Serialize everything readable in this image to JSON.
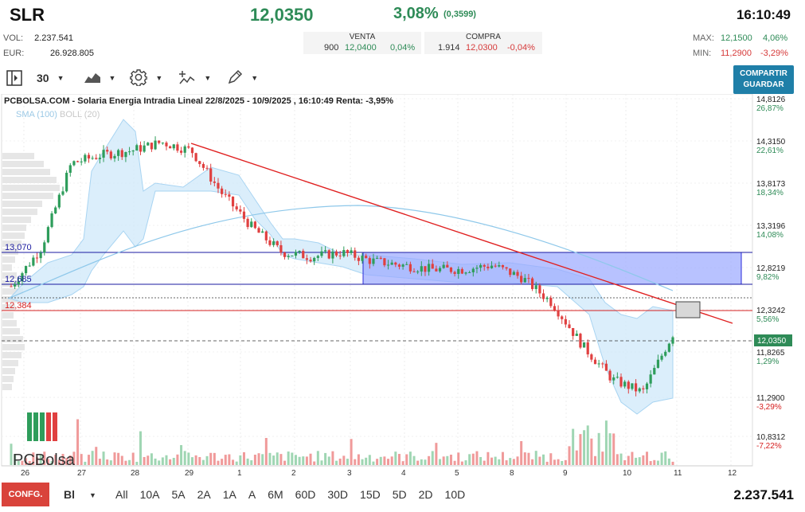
{
  "header": {
    "ticker": "SLR",
    "last_price": "12,0350",
    "change_pct": "3,08%",
    "change_abs": "(0,3599)",
    "time": "16:10:49"
  },
  "stats": {
    "vol_label": "VOL:",
    "vol_value": "2.237.541",
    "eur_label": "EUR:",
    "eur_value": "26.928.805"
  },
  "quote": {
    "venta_label": "VENTA",
    "venta_qty": "900",
    "venta_price": "12,0400",
    "venta_pct": "0,04%",
    "compra_label": "COMPRA",
    "compra_qty": "1.914",
    "compra_price": "12,0300",
    "compra_pct": "-0,04%"
  },
  "maxmin": {
    "max_label": "MAX:",
    "max_value": "12,1500",
    "max_pct": "4,06%",
    "min_label": "MIN:",
    "min_value": "11,2900",
    "min_pct": "-3,29%"
  },
  "toolbar": {
    "interval": "30",
    "share_line1": "COMPARTIR",
    "share_line2": "GUARDAR"
  },
  "chart": {
    "title": "PCBOLSA.COM - Solaria Energia Intradia Lineal 22/8/2025 - 10/9/2025 , 16:10:49 Renta: -3,95%",
    "legend_sma": "SMA (100)",
    "legend_boll": "BOLL (20)",
    "watermark": "PCBolsa",
    "left_labels": [
      "13,070",
      "12,685",
      "12,384"
    ],
    "right_axis": [
      {
        "price": "14,8126",
        "pct": "26,87%"
      },
      {
        "price": "14,3150",
        "pct": "22,61%"
      },
      {
        "price": "13,8173",
        "pct": "18,34%"
      },
      {
        "price": "13,3196",
        "pct": "14,08%"
      },
      {
        "price": "12,8219",
        "pct": "9,82%"
      },
      {
        "price": "12,3242",
        "pct": "5,56%"
      },
      {
        "price": "11,8265",
        "pct": "1,29%"
      },
      {
        "price": "11,2900",
        "pct": "-3,29%"
      },
      {
        "price": "10,8312",
        "pct": "-7,22%"
      }
    ],
    "current_price_tag": "12,0350",
    "x_labels": [
      "26",
      "27",
      "28",
      "29",
      "1",
      "2",
      "3",
      "4",
      "5",
      "8",
      "9",
      "10",
      "11",
      "12"
    ]
  },
  "chart_data": {
    "type": "line",
    "title": "PCBOLSA.COM - Solaria Energia Intradia Lineal 22/8/2025 - 10/9/2025 , 16:10:49 Renta: -3,95%",
    "x": [
      "26",
      "27",
      "28",
      "29",
      "1",
      "2",
      "3",
      "4",
      "5",
      "8",
      "9",
      "10",
      "11",
      "12"
    ],
    "ylim": [
      10.6,
      14.9
    ],
    "price_path": [
      12.6,
      13.05,
      14.05,
      14.15,
      14.2,
      14.3,
      14.2,
      13.7,
      13.3,
      13.0,
      12.95,
      13.0,
      12.9,
      12.85,
      12.8,
      12.8,
      12.85,
      12.7,
      12.4,
      11.9,
      11.5,
      11.35,
      12.04
    ],
    "levels": [
      13.07,
      12.685,
      12.384
    ],
    "last": 12.035,
    "colors": {
      "up": "#2e9d5b",
      "down": "#e04040",
      "trend": "#e02020",
      "boll": "#9fd0f0",
      "sma": "#8ec8ea",
      "box": "#9aa8ff"
    }
  },
  "bottom": {
    "config": "CONFG.",
    "bi": "Bl",
    "ranges": [
      "All",
      "10A",
      "5A",
      "2A",
      "1A",
      "A",
      "6M",
      "60D",
      "30D",
      "15D",
      "5D",
      "2D",
      "10D"
    ],
    "volume_total": "2.237.541"
  }
}
